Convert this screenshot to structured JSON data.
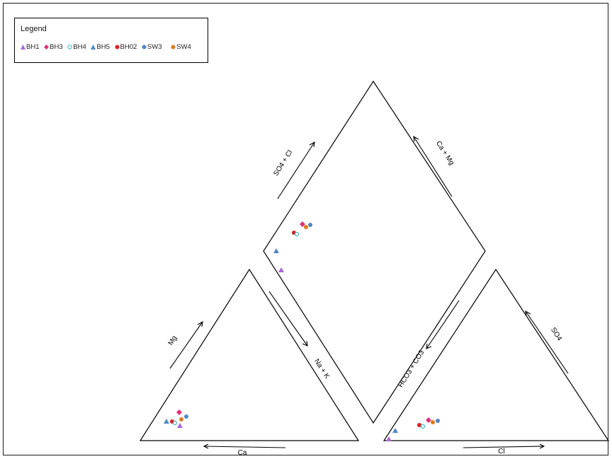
{
  "legend": {
    "title": "Legend",
    "items": [
      {
        "label": "BH1",
        "marker": "triangle",
        "color": "#a66bd6"
      },
      {
        "label": "BH3",
        "marker": "diamond",
        "color": "#e0307a"
      },
      {
        "label": "BH4",
        "marker": "circle-open",
        "color": "#3cb8d4"
      },
      {
        "label": "BH5",
        "marker": "triangle",
        "color": "#4f86c6"
      },
      {
        "label": "BH02",
        "marker": "circle",
        "color": "#e02020"
      },
      {
        "label": "SW3",
        "marker": "circle",
        "color": "#4f86c6"
      },
      {
        "label": "SW4",
        "marker": "circle",
        "color": "#e07a20"
      }
    ]
  },
  "axes": {
    "cation_bottom": "Ca",
    "cation_left": "Mg",
    "cation_right": "Na + K",
    "anion_bottom": "Cl",
    "anion_left": "HCO3 + CO3",
    "anion_right": "SO4",
    "diamond_upper_left": "SO4 + Cl",
    "diamond_upper_right": "Ca + Mg"
  }
}
